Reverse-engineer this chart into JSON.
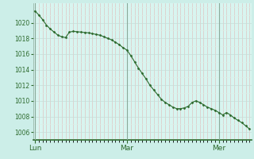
{
  "background_color": "#cceee8",
  "plot_bg_color": "#d8f5f0",
  "line_color": "#2d6a2d",
  "marker_color": "#2d6a2d",
  "tick_label_color": "#2d6a2d",
  "grid_major_color": "#c8ddd8",
  "grid_minor_color": "#ddeee8",
  "vline_day_color": "#8aaa9a",
  "vline_hour_color": "#e0b8b8",
  "bottom_spine_color": "#2d6a2d",
  "ylim": [
    1005.0,
    1022.5
  ],
  "yticks": [
    1006,
    1008,
    1010,
    1012,
    1014,
    1016,
    1018,
    1020
  ],
  "xtick_labels": [
    "Lun",
    "Mar",
    "Mer"
  ],
  "pressure_values": [
    1021.5,
    1021.0,
    1020.4,
    1019.7,
    1019.2,
    1018.8,
    1018.4,
    1018.2,
    1018.1,
    1018.8,
    1018.9,
    1018.85,
    1018.8,
    1018.75,
    1018.7,
    1018.6,
    1018.5,
    1018.4,
    1018.2,
    1018.0,
    1017.8,
    1017.5,
    1017.2,
    1016.8,
    1016.5,
    1015.8,
    1015.0,
    1014.2,
    1013.5,
    1012.8,
    1012.0,
    1011.4,
    1010.8,
    1010.2,
    1009.8,
    1009.5,
    1009.2,
    1009.0,
    1009.0,
    1009.1,
    1009.3,
    1009.8,
    1010.0,
    1009.8,
    1009.5,
    1009.2,
    1009.0,
    1008.8,
    1008.5,
    1008.2,
    1008.5,
    1008.2,
    1007.8,
    1007.5,
    1007.2,
    1006.8,
    1006.4
  ],
  "num_points": 57,
  "lun_idx": 0,
  "mar_idx": 24,
  "mer_idx": 48
}
